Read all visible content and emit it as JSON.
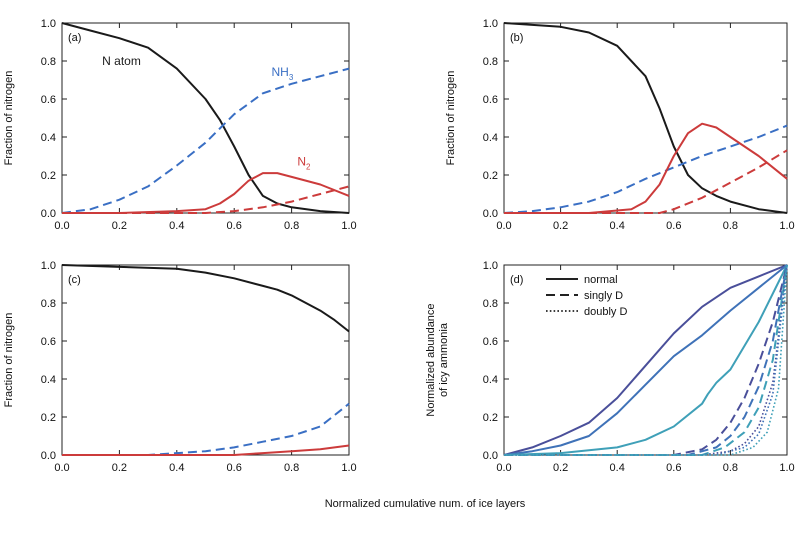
{
  "figure": {
    "xlabel_shared": "Normalized cumulative num. of ice layers",
    "colors": {
      "black": "#1a1a1a",
      "blue": "#3a6fc4",
      "red": "#cc3b3b",
      "navy": "#4a4f9a",
      "mid_blue": "#3f72b8",
      "cyan": "#3fa0b8"
    }
  },
  "chart_data": [
    {
      "id": "a",
      "type": "line",
      "panel_label": "(a)",
      "ylabel": "Fraction of nitrogen",
      "xlim": [
        0,
        1
      ],
      "ylim": [
        0,
        1
      ],
      "xticks": [
        "0.0",
        "0.2",
        "0.4",
        "0.6",
        "0.8",
        "1.0"
      ],
      "yticks": [
        "0.0",
        "0.2",
        "0.4",
        "0.6",
        "0.8",
        "1.0"
      ],
      "annotations": [
        {
          "text": "N atom",
          "x": 0.14,
          "y": 0.78,
          "color": "black"
        },
        {
          "text": "NH",
          "sub": "3",
          "x": 0.73,
          "y": 0.72,
          "color": "blue"
        },
        {
          "text": "N",
          "sub": "2",
          "x": 0.82,
          "y": 0.25,
          "color": "red"
        }
      ],
      "series": [
        {
          "color": "black",
          "dash": "solid",
          "x": [
            0,
            0.1,
            0.2,
            0.3,
            0.4,
            0.5,
            0.55,
            0.6,
            0.65,
            0.7,
            0.75,
            0.8,
            0.9,
            1.0
          ],
          "y": [
            1.0,
            0.96,
            0.92,
            0.87,
            0.76,
            0.6,
            0.49,
            0.35,
            0.2,
            0.09,
            0.05,
            0.03,
            0.01,
            0.0
          ]
        },
        {
          "color": "blue",
          "dash": "dashed",
          "x": [
            0,
            0.1,
            0.2,
            0.3,
            0.4,
            0.5,
            0.6,
            0.7,
            0.8,
            0.9,
            1.0
          ],
          "y": [
            0.0,
            0.02,
            0.07,
            0.14,
            0.25,
            0.37,
            0.52,
            0.63,
            0.68,
            0.72,
            0.76
          ]
        },
        {
          "color": "red",
          "dash": "solid",
          "x": [
            0,
            0.2,
            0.4,
            0.5,
            0.55,
            0.6,
            0.65,
            0.7,
            0.75,
            0.8,
            0.9,
            1.0
          ],
          "y": [
            0.0,
            0.0,
            0.01,
            0.02,
            0.05,
            0.1,
            0.17,
            0.21,
            0.21,
            0.19,
            0.15,
            0.09
          ]
        },
        {
          "color": "red",
          "dash": "dashed",
          "x": [
            0,
            0.5,
            0.6,
            0.7,
            0.8,
            0.9,
            1.0
          ],
          "y": [
            0.0,
            0.0,
            0.01,
            0.03,
            0.06,
            0.1,
            0.14
          ]
        }
      ]
    },
    {
      "id": "b",
      "type": "line",
      "panel_label": "(b)",
      "ylabel": "Fraction of nitrogen",
      "xlim": [
        0,
        1
      ],
      "ylim": [
        0,
        1
      ],
      "xticks": [
        "0.0",
        "0.2",
        "0.4",
        "0.6",
        "0.8",
        "1.0"
      ],
      "yticks": [
        "0.0",
        "0.2",
        "0.4",
        "0.6",
        "0.8",
        "1.0"
      ],
      "annotations": [],
      "series": [
        {
          "color": "black",
          "dash": "solid",
          "x": [
            0,
            0.1,
            0.2,
            0.3,
            0.4,
            0.5,
            0.55,
            0.6,
            0.65,
            0.7,
            0.75,
            0.8,
            0.9,
            1.0
          ],
          "y": [
            1.0,
            0.99,
            0.98,
            0.95,
            0.88,
            0.72,
            0.55,
            0.35,
            0.2,
            0.13,
            0.09,
            0.06,
            0.02,
            0.0
          ]
        },
        {
          "color": "blue",
          "dash": "dashed",
          "x": [
            0,
            0.1,
            0.2,
            0.3,
            0.4,
            0.5,
            0.6,
            0.7,
            0.8,
            0.9,
            1.0
          ],
          "y": [
            0.0,
            0.01,
            0.03,
            0.06,
            0.11,
            0.18,
            0.24,
            0.3,
            0.35,
            0.4,
            0.46
          ]
        },
        {
          "color": "red",
          "dash": "solid",
          "x": [
            0,
            0.3,
            0.45,
            0.5,
            0.55,
            0.6,
            0.65,
            0.7,
            0.75,
            0.8,
            0.9,
            1.0
          ],
          "y": [
            0.0,
            0.0,
            0.02,
            0.06,
            0.15,
            0.3,
            0.42,
            0.47,
            0.45,
            0.4,
            0.3,
            0.18
          ]
        },
        {
          "color": "red",
          "dash": "dashed",
          "x": [
            0,
            0.55,
            0.6,
            0.7,
            0.8,
            0.9,
            1.0
          ],
          "y": [
            0.0,
            0.0,
            0.02,
            0.08,
            0.16,
            0.24,
            0.33
          ]
        }
      ]
    },
    {
      "id": "c",
      "type": "line",
      "panel_label": "(c)",
      "ylabel": "Fraction of nitrogen",
      "xlim": [
        0,
        1
      ],
      "ylim": [
        0,
        1
      ],
      "xticks": [
        "0.0",
        "0.2",
        "0.4",
        "0.6",
        "0.8",
        "1.0"
      ],
      "yticks": [
        "0.0",
        "0.2",
        "0.4",
        "0.6",
        "0.8",
        "1.0"
      ],
      "annotations": [],
      "series": [
        {
          "color": "black",
          "dash": "solid",
          "x": [
            0,
            0.2,
            0.4,
            0.5,
            0.6,
            0.7,
            0.75,
            0.8,
            0.9,
            0.95,
            1.0
          ],
          "y": [
            1.0,
            0.99,
            0.98,
            0.96,
            0.93,
            0.89,
            0.87,
            0.84,
            0.76,
            0.71,
            0.65
          ]
        },
        {
          "color": "blue",
          "dash": "dashed",
          "x": [
            0,
            0.3,
            0.4,
            0.5,
            0.6,
            0.7,
            0.8,
            0.9,
            1.0
          ],
          "y": [
            0.0,
            0.0,
            0.01,
            0.02,
            0.04,
            0.07,
            0.1,
            0.15,
            0.27
          ]
        },
        {
          "color": "red",
          "dash": "solid",
          "x": [
            0,
            0.5,
            0.6,
            0.7,
            0.8,
            0.9,
            1.0
          ],
          "y": [
            0.0,
            0.0,
            0.0,
            0.01,
            0.02,
            0.03,
            0.05
          ]
        }
      ]
    },
    {
      "id": "d",
      "type": "line",
      "panel_label": "(d)",
      "ylabel": "Normalized abundance",
      "ylabel2": "of icy ammonia",
      "xlim": [
        0,
        1
      ],
      "ylim": [
        0,
        1
      ],
      "xticks": [
        "0.0",
        "0.2",
        "0.4",
        "0.6",
        "0.8",
        "1.0"
      ],
      "yticks": [
        "0.0",
        "0.2",
        "0.4",
        "0.6",
        "0.8",
        "1.0"
      ],
      "legend": [
        {
          "label": "normal",
          "dash": "solid"
        },
        {
          "label": "singly D",
          "dash": "dashed"
        },
        {
          "label": "doubly D",
          "dash": "dotted"
        }
      ],
      "series": [
        {
          "color": "navy",
          "dash": "solid",
          "x": [
            0,
            0.1,
            0.2,
            0.3,
            0.4,
            0.5,
            0.6,
            0.7,
            0.8,
            0.9,
            1.0
          ],
          "y": [
            0.0,
            0.04,
            0.1,
            0.17,
            0.3,
            0.47,
            0.64,
            0.78,
            0.88,
            0.94,
            1.0
          ]
        },
        {
          "color": "mid_blue",
          "dash": "solid",
          "x": [
            0,
            0.1,
            0.2,
            0.3,
            0.4,
            0.5,
            0.6,
            0.7,
            0.8,
            0.9,
            1.0
          ],
          "y": [
            0.0,
            0.02,
            0.05,
            0.1,
            0.22,
            0.37,
            0.52,
            0.63,
            0.76,
            0.88,
            1.0
          ]
        },
        {
          "color": "cyan",
          "dash": "solid",
          "x": [
            0,
            0.2,
            0.4,
            0.5,
            0.6,
            0.7,
            0.72,
            0.75,
            0.8,
            0.9,
            1.0
          ],
          "y": [
            0.0,
            0.01,
            0.04,
            0.08,
            0.15,
            0.27,
            0.32,
            0.38,
            0.45,
            0.7,
            1.0
          ]
        },
        {
          "color": "navy",
          "dash": "dashed",
          "x": [
            0,
            0.6,
            0.7,
            0.75,
            0.8,
            0.85,
            0.9,
            0.95,
            1.0
          ],
          "y": [
            0.0,
            0.0,
            0.03,
            0.08,
            0.17,
            0.3,
            0.48,
            0.7,
            1.0
          ]
        },
        {
          "color": "mid_blue",
          "dash": "dashed",
          "x": [
            0,
            0.65,
            0.75,
            0.8,
            0.85,
            0.9,
            0.95,
            1.0
          ],
          "y": [
            0.0,
            0.0,
            0.04,
            0.1,
            0.2,
            0.36,
            0.6,
            1.0
          ]
        },
        {
          "color": "cyan",
          "dash": "dashed",
          "x": [
            0,
            0.7,
            0.78,
            0.85,
            0.9,
            0.95,
            1.0
          ],
          "y": [
            0.0,
            0.0,
            0.04,
            0.12,
            0.25,
            0.5,
            1.0
          ]
        },
        {
          "color": "navy",
          "dash": "dotted",
          "x": [
            0,
            0.7,
            0.8,
            0.85,
            0.9,
            0.95,
            1.0
          ],
          "y": [
            0.0,
            0.0,
            0.02,
            0.06,
            0.15,
            0.38,
            1.0
          ]
        },
        {
          "color": "mid_blue",
          "dash": "dotted",
          "x": [
            0,
            0.75,
            0.85,
            0.9,
            0.95,
            1.0
          ],
          "y": [
            0.0,
            0.0,
            0.04,
            0.11,
            0.32,
            1.0
          ]
        },
        {
          "color": "cyan",
          "dash": "dotted",
          "x": [
            0,
            0.8,
            0.88,
            0.93,
            0.97,
            1.0
          ],
          "y": [
            0.0,
            0.0,
            0.04,
            0.12,
            0.35,
            1.0
          ]
        }
      ]
    }
  ]
}
